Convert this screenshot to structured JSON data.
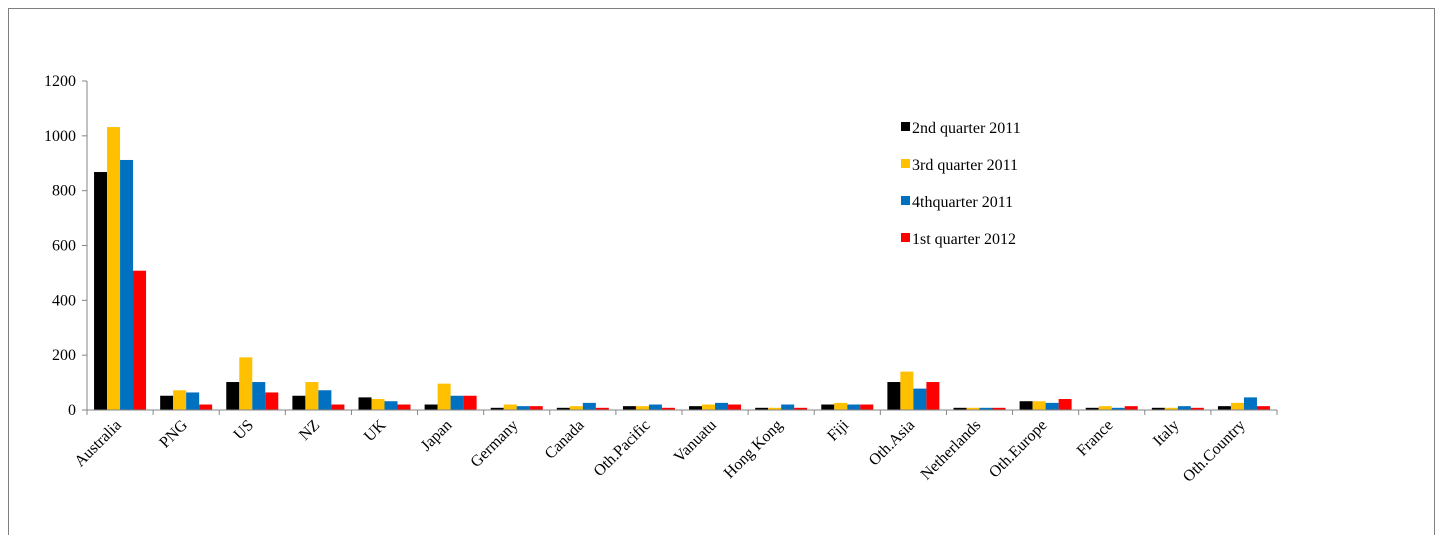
{
  "chart_data": {
    "type": "bar",
    "title": "",
    "xlabel": "",
    "ylabel": "",
    "ylim": [
      0,
      1200
    ],
    "yticks": [
      0,
      200,
      400,
      600,
      800,
      1000,
      1200
    ],
    "grid": false,
    "legend_position": "top-right",
    "categories": [
      "Australia",
      "PNG",
      "US",
      "NZ",
      "UK",
      "Japan",
      "Germany",
      "Canada",
      "Oth.Pacific",
      "Vanuatu",
      "Hong Kong",
      "Fiji",
      "Oth.Asia",
      "Netherlands",
      "Oth.Europe",
      "France",
      "Italy",
      "Oth.Country"
    ],
    "series": [
      {
        "name": "2nd quarter 2011",
        "color": "#000000",
        "values": [
          868,
          52,
          102,
          52,
          46,
          20,
          8,
          8,
          14,
          14,
          8,
          20,
          102,
          8,
          32,
          8,
          8,
          14
        ]
      },
      {
        "name": "3rd quarter 2011",
        "color": "#ffc000",
        "values": [
          1032,
          72,
          192,
          102,
          40,
          96,
          20,
          14,
          14,
          20,
          8,
          26,
          140,
          8,
          32,
          14,
          8,
          26
        ]
      },
      {
        "name": "4thquarter 2011",
        "color": "#0070c0",
        "values": [
          912,
          64,
          102,
          72,
          32,
          52,
          14,
          26,
          20,
          26,
          20,
          20,
          78,
          8,
          26,
          8,
          14,
          46
        ]
      },
      {
        "name": "1st quarter 2012",
        "color": "#ff0000",
        "values": [
          508,
          20,
          64,
          20,
          20,
          52,
          14,
          8,
          8,
          20,
          8,
          20,
          102,
          8,
          40,
          14,
          8,
          14
        ]
      }
    ]
  }
}
